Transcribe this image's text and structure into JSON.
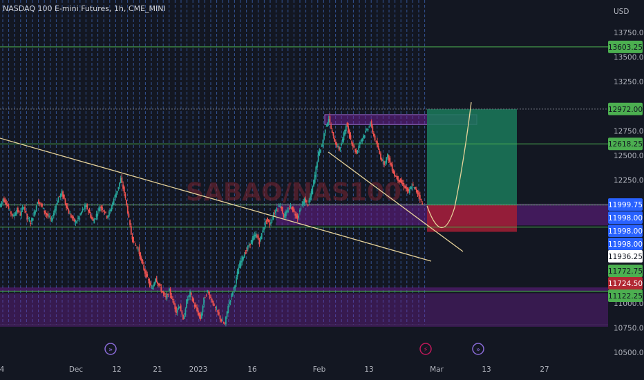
{
  "header": {
    "title": "NASDAQ 100 E-mini Futures, 1h, CME_MINI"
  },
  "chart_data": {
    "type": "line",
    "currency": "USD",
    "watermark": "SABAO/NAS100",
    "y_scale": "linear",
    "ylim": [
      10450,
      14000
    ],
    "y_ticks": [
      "13750.00",
      "13500.00",
      "13250.00",
      "12750.00",
      "12500.00",
      "12250.00",
      "11000.00",
      "10750.00",
      "10500.00"
    ],
    "x_ticks": [
      "4",
      "Dec",
      "12",
      "21",
      "2023",
      "16",
      "Feb",
      "13",
      "Mar",
      "13",
      "27"
    ],
    "series": [
      {
        "values": [
          11980,
          12060,
          12020,
          11930,
          11880,
          11950,
          11900,
          11990,
          11860,
          11820,
          11910,
          12040,
          12000,
          11930,
          11880,
          11840,
          11960,
          12070,
          12120,
          12020,
          11920,
          11860,
          11820,
          11880,
          11950,
          11990,
          11910,
          11830,
          11900,
          11980,
          11950,
          11880,
          11940,
          12060,
          12150,
          12260,
          12120,
          11930,
          11700,
          11600,
          11550,
          11420,
          11310,
          11220,
          11140,
          11260,
          11180,
          11110,
          11050,
          11130,
          11020,
          10920,
          10980,
          10820,
          11020,
          11100,
          11000,
          10920,
          10840,
          11040,
          11120,
          11050,
          10960,
          10900,
          10820,
          10780,
          10980,
          11080,
          11200,
          11360,
          11460,
          11520,
          11590,
          11650,
          11700,
          11620,
          11750,
          11850,
          11800,
          11900,
          11960,
          12000,
          11880,
          11930,
          11990,
          11920,
          11870,
          11980,
          12050,
          12000,
          12120,
          12300,
          12520,
          12600,
          12780,
          12880,
          12720,
          12620,
          12560,
          12660,
          12820,
          12700,
          12600,
          12520,
          12640,
          12700,
          12760,
          12830,
          12700,
          12590,
          12480,
          12420,
          12500,
          12390,
          12300,
          12260,
          12220,
          12180,
          12120,
          12200,
          12150,
          12100,
          12000
        ]
      }
    ],
    "horizontal_levels": [
      "13603.25",
      "12618.25",
      "11998.00",
      "11772.75",
      "11122.25"
    ],
    "price_labels": [
      {
        "text": "13603.25",
        "color": "#4caf50",
        "text_color": "#131722"
      },
      {
        "text": "12972.00",
        "color": "#4caf50",
        "text_color": "#131722"
      },
      {
        "text": "12618.25",
        "color": "#4caf50",
        "text_color": "#131722"
      },
      {
        "text": "11999.75",
        "color": "#2962ff",
        "text_color": "#ffffff"
      },
      {
        "text": "11998.00",
        "color": "#2962ff",
        "text_color": "#ffffff"
      },
      {
        "text": "11998.00",
        "color": "#2962ff",
        "text_color": "#ffffff"
      },
      {
        "text": "11998.00",
        "color": "#2962ff",
        "text_color": "#ffffff"
      },
      {
        "text": "11936.25",
        "color": "#ffffff",
        "text_color": "#131722"
      },
      {
        "text": "11772.75",
        "color": "#4caf50",
        "text_color": "#131722"
      },
      {
        "text": "11724.50",
        "color": "#b22833",
        "text_color": "#ffffff"
      },
      {
        "text": "11122.25",
        "color": "#4caf50",
        "text_color": "#131722"
      }
    ],
    "grid": true,
    "colors": {
      "background": "#131722",
      "up": "#26a69a",
      "down": "#ef5350",
      "level_line": "#4caf50",
      "trendline": "#e6d29a",
      "zone": "#7b1fa2",
      "profit_zone": "#1b7a5a",
      "loss_zone": "#a31f34"
    }
  }
}
